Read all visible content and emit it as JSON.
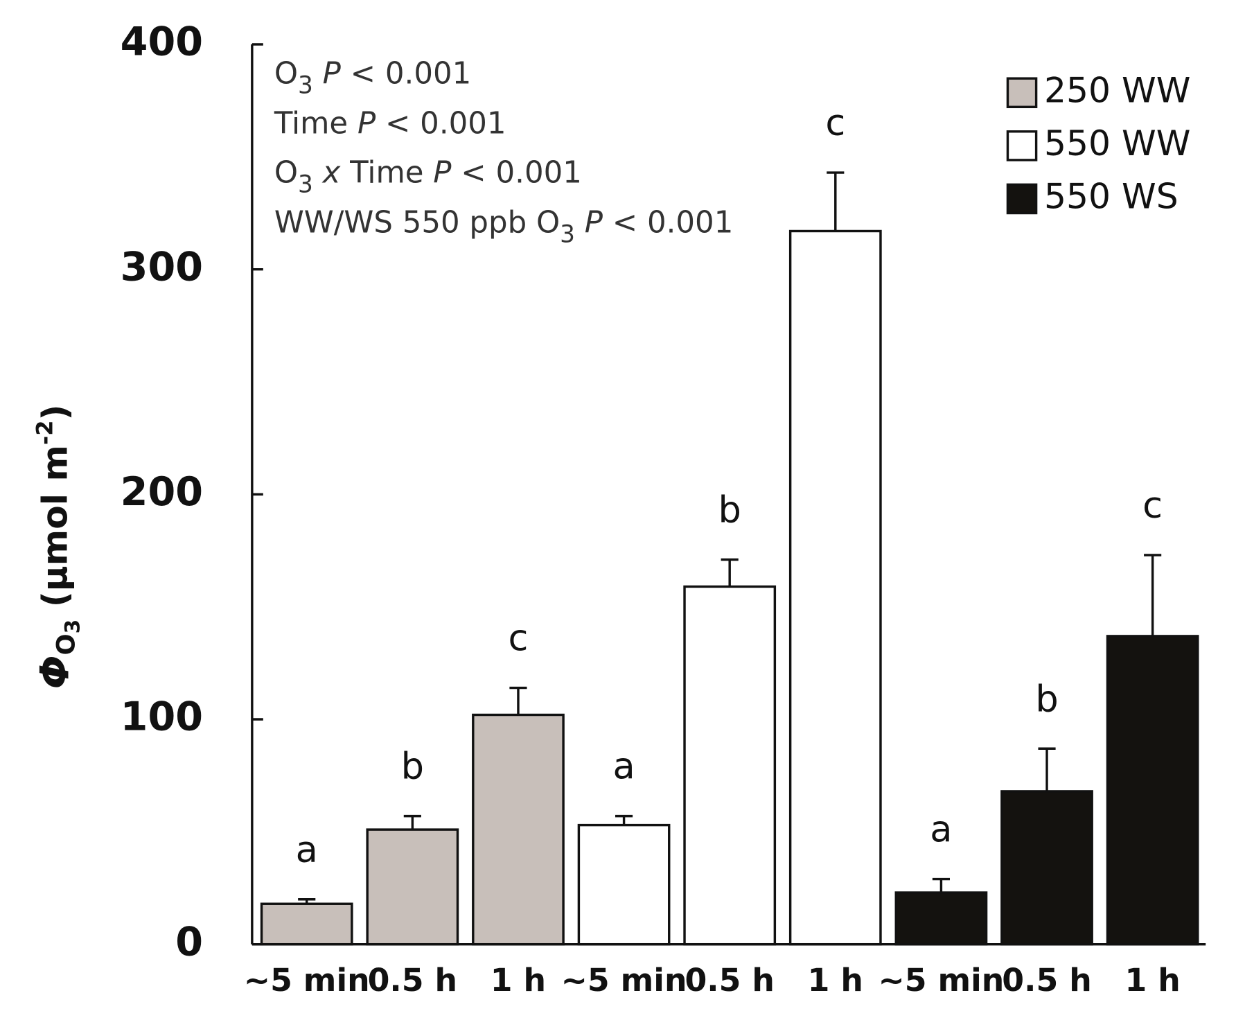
{
  "chart_data": {
    "type": "bar",
    "categories": [
      "~5 min",
      "0.5 h",
      "1 h"
    ],
    "series": [
      {
        "name": "250 WW",
        "color": "#c8bfba",
        "values": [
          18,
          51,
          102
        ],
        "errors": [
          2,
          6,
          12
        ],
        "letters": [
          "a",
          "b",
          "c"
        ]
      },
      {
        "name": "550 WW",
        "color": "#ffffff",
        "values": [
          53,
          159,
          317
        ],
        "errors": [
          4,
          12,
          26
        ],
        "letters": [
          "a",
          "b",
          "c"
        ]
      },
      {
        "name": "550 WS",
        "color": "#14120f",
        "values": [
          23,
          68,
          137
        ],
        "errors": [
          6,
          19,
          36
        ],
        "letters": [
          "a",
          "b",
          "c"
        ]
      }
    ],
    "ylim": [
      0,
      400
    ],
    "yticks": [
      0,
      100,
      200,
      300,
      400
    ],
    "y_label": [
      "Φ",
      "O",
      "3",
      " (µmol m",
      "-2",
      ")"
    ],
    "annotations": [
      [
        "O",
        "3",
        " P",
        " < 0.001"
      ],
      [
        "Time ",
        "P",
        " < 0.001"
      ],
      [
        "O",
        "3",
        " x",
        " Time ",
        "P",
        " < 0.001"
      ],
      [
        "WW/WS 550 ppb O",
        "3",
        " P",
        " < 0.001"
      ]
    ]
  }
}
